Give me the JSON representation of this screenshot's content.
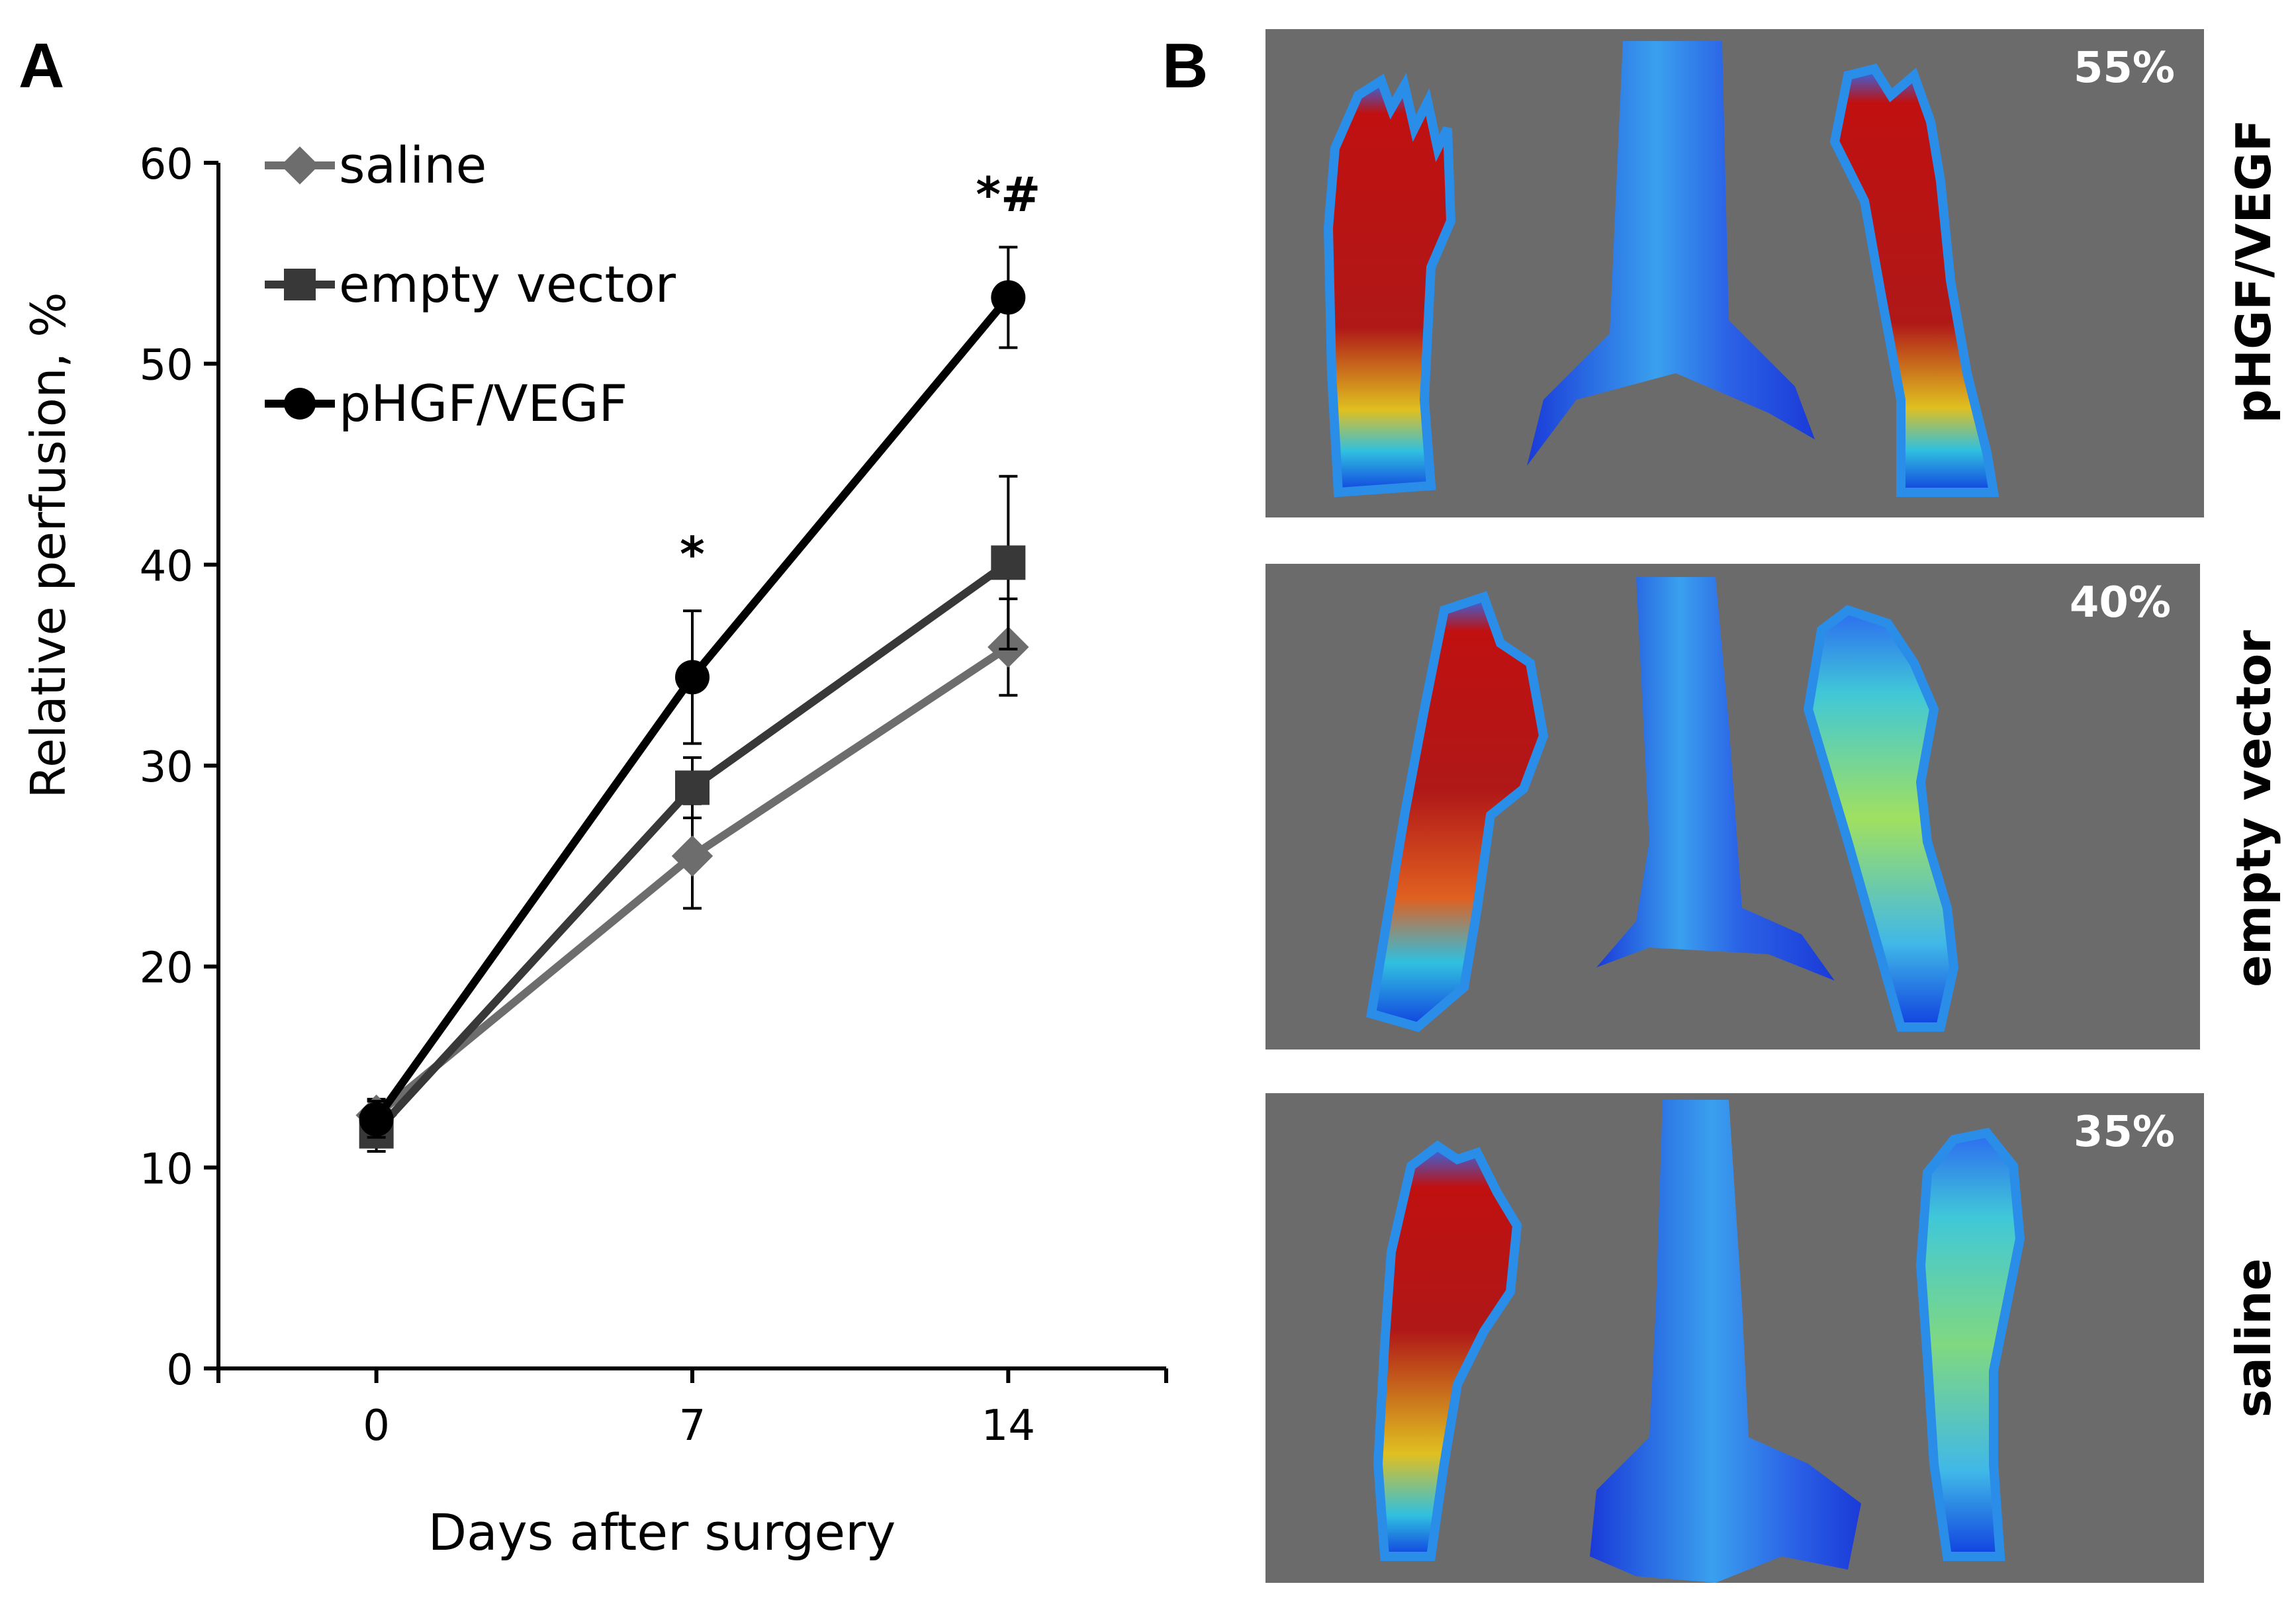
{
  "panels": {
    "a_letter": "A",
    "b_letter": "B"
  },
  "chart_data": {
    "type": "line",
    "xlabel": "Days after surgery",
    "ylabel": "Relative perfusion, %",
    "x": [
      0,
      7,
      14
    ],
    "xticks": [
      "0",
      "7",
      "14"
    ],
    "yticks": [
      "0",
      "10",
      "20",
      "30",
      "40",
      "50",
      "60"
    ],
    "ylim": [
      0,
      60
    ],
    "xlim": [
      -3.5,
      17.5
    ],
    "grid": false,
    "legend_position": "top-left",
    "series": [
      {
        "name": "saline",
        "marker": "diamond",
        "color": "#6d6d6d",
        "values": [
          12.6,
          25.5,
          35.9
        ],
        "errors": [
          0.8,
          2.6,
          2.4
        ]
      },
      {
        "name": "empty vector",
        "marker": "square",
        "color": "#383838",
        "values": [
          11.8,
          28.9,
          40.1
        ],
        "errors": [
          1.0,
          1.5,
          4.3
        ]
      },
      {
        "name": "pHGF/VEGF",
        "marker": "circle",
        "color": "#000000",
        "values": [
          12.4,
          34.4,
          53.3
        ],
        "errors": [
          0.9,
          3.3,
          2.5
        ]
      }
    ],
    "annotations": [
      {
        "x": 7,
        "y": 39.7,
        "text": "*"
      },
      {
        "x": 14,
        "y": 57.6,
        "text": "*#"
      }
    ]
  },
  "images": [
    {
      "label": "pHGF/VEGF",
      "percent": "55%",
      "heat_level": 0.55
    },
    {
      "label": "empty vector",
      "percent": "40%",
      "heat_level": 0.4
    },
    {
      "label": "saline",
      "percent": "35%",
      "heat_level": 0.35
    }
  ]
}
